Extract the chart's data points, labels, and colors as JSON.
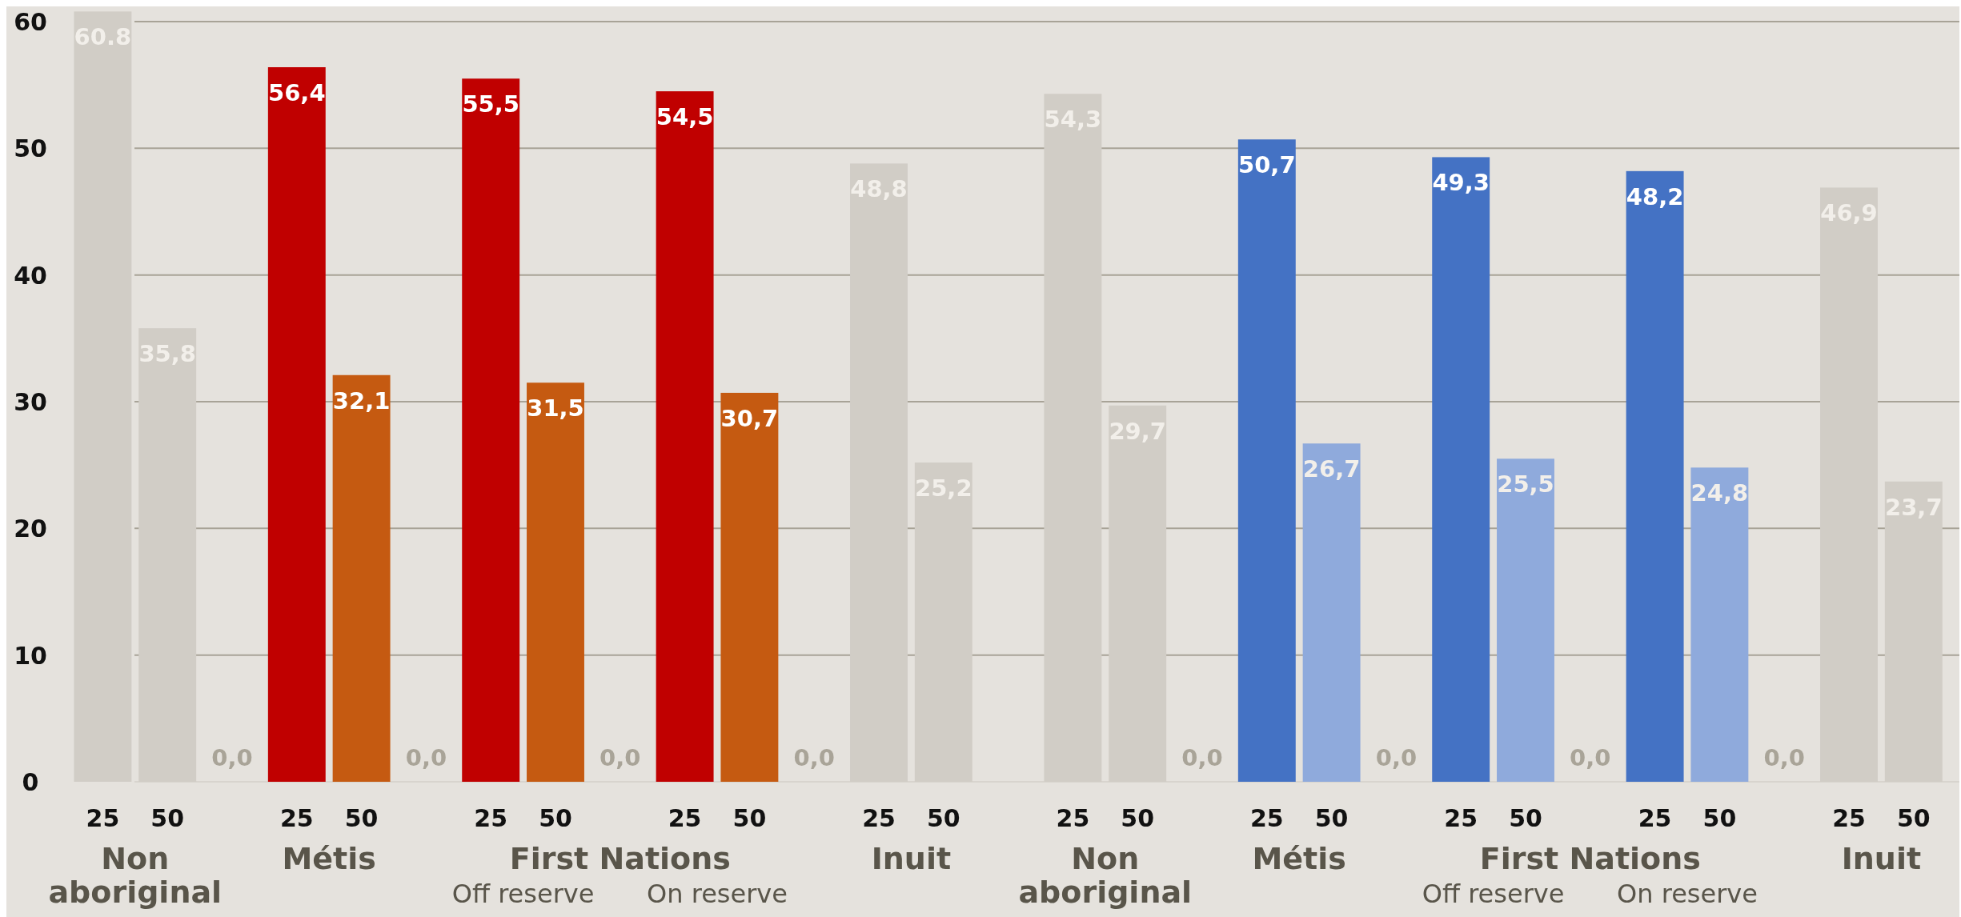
{
  "chart_data": {
    "type": "bar",
    "categories": [
      "25",
      "50",
      null,
      "25",
      "50",
      null,
      "25",
      "50",
      null,
      "25",
      "50",
      null,
      "25",
      "50",
      null,
      "25",
      "50",
      null,
      "25",
      "50",
      null,
      "25",
      "50",
      null,
      "25",
      "50",
      null,
      "25",
      "50"
    ],
    "values": [
      60.8,
      35.8,
      0,
      56.4,
      32.1,
      0,
      55.5,
      31.5,
      0,
      54.5,
      30.7,
      0,
      48.8,
      25.2,
      null,
      54.3,
      29.7,
      0,
      50.7,
      26.7,
      0,
      49.3,
      25.5,
      0,
      48.2,
      24.8,
      0,
      46.9,
      23.7
    ],
    "value_labels": [
      "60.8",
      "35,8",
      "0,0",
      "56,4",
      "32,1",
      "0,0",
      "55,5",
      "31,5",
      "0,0",
      "54,5",
      "30,7",
      "0,0",
      "48,8",
      "25,2",
      null,
      "54,3",
      "29,7",
      "0,0",
      "50,7",
      "26,7",
      "0,0",
      "49,3",
      "25,5",
      "0,0",
      "48,2",
      "24,8",
      "0,0",
      "46,9",
      "23,7"
    ],
    "colors": [
      "#d1cdc6",
      "#d1cdc6",
      "#d1cdc6",
      "#c00000",
      "#c55a11",
      "#d1cdc6",
      "#c00000",
      "#c55a11",
      "#d1cdc6",
      "#c00000",
      "#c55a11",
      "#d1cdc6",
      "#d1cdc6",
      "#d1cdc6",
      null,
      "#d1cdc6",
      "#d1cdc6",
      "#d1cdc6",
      "#4472c4",
      "#8faadc",
      "#d1cdc6",
      "#4472c4",
      "#8faadc",
      "#d1cdc6",
      "#4472c4",
      "#8faadc",
      "#d1cdc6",
      "#d1cdc6",
      "#d1cdc6"
    ],
    "ylim": [
      0,
      61.2
    ],
    "yticks": [
      0,
      10,
      20,
      30,
      40,
      50,
      60
    ],
    "grid": "y",
    "annotations": [
      "Non aboriginal",
      "Métis",
      "First Nations",
      "Off reserve",
      "On reserve",
      "Inuit",
      "Non aboriginal",
      "Métis",
      "First Nations",
      "Off reserve",
      "On reserve",
      "Inuit"
    ]
  }
}
